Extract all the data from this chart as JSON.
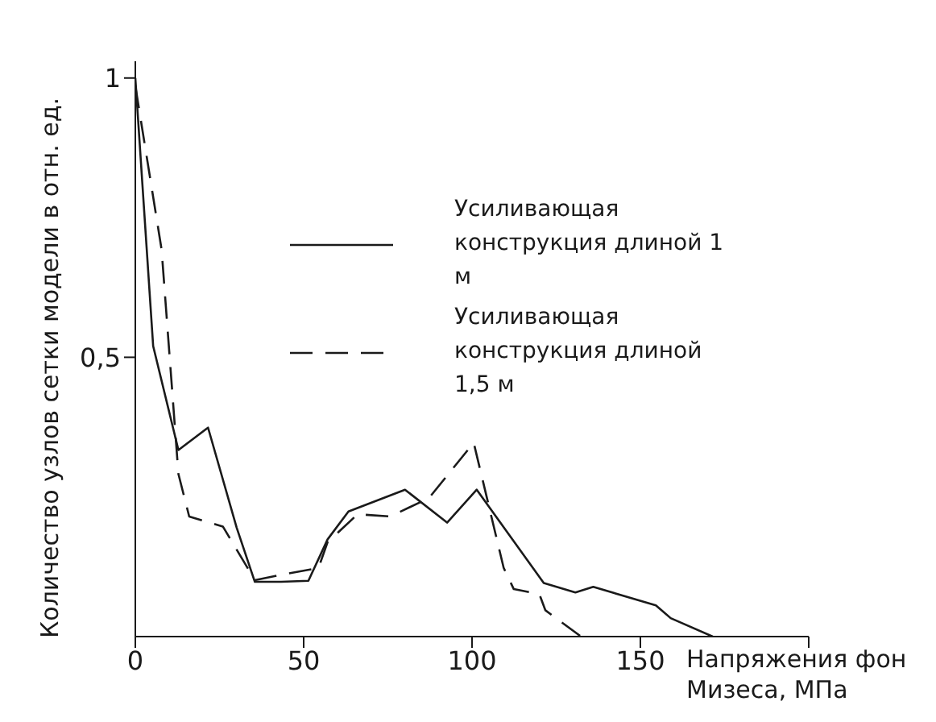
{
  "chart_data": {
    "type": "line",
    "xlabel": "Напряжения фон Мизеса, МПа",
    "ylabel": "Количество узлов сетки модели в отн. ед.",
    "xlim": [
      0,
      200
    ],
    "xticks": [
      0,
      50,
      100,
      150,
      {
        "value": 200,
        "label": null
      }
    ],
    "ylim": [
      0,
      1.03
    ],
    "yticks": [
      {
        "value": 0.5,
        "label": "0,5"
      },
      1
    ],
    "grid": false,
    "legend": "top right",
    "marker": "none",
    "series": [
      {
        "name": "Усиливающая конструкция длиной 1 м",
        "color": "#1a1a1a",
        "line_style": "solid",
        "x": [
          0,
          5.3,
          12.8,
          21.6,
          30.1,
          35.5,
          43.3,
          51.4,
          57.1,
          63.3,
          80.1,
          92.6,
          101.4,
          121.3,
          130.7,
          136,
          154.6,
          159,
          171.5
        ],
        "values": [
          1.0,
          0.52,
          0.334,
          0.374,
          0.195,
          0.098,
          0.098,
          0.1,
          0.174,
          0.224,
          0.263,
          0.204,
          0.263,
          0.096,
          0.079,
          0.089,
          0.056,
          0.033,
          0
        ]
      },
      {
        "name": "Усиливающая конструкция длиной 1,5 м",
        "color": "#1a1a1a",
        "line_style": "dashed",
        "x": [
          0,
          7.8,
          12.8,
          16,
          26,
          35.5,
          42,
          54.4,
          57.1,
          66,
          75.7,
          87.2,
          100.5,
          109.4,
          112.4,
          120,
          121.8,
          132.4
        ],
        "values": [
          0.986,
          0.693,
          0.291,
          0.215,
          0.197,
          0.101,
          0.109,
          0.123,
          0.169,
          0.219,
          0.215,
          0.248,
          0.347,
          0.123,
          0.085,
          0.076,
          0.047,
          0
        ]
      }
    ]
  }
}
